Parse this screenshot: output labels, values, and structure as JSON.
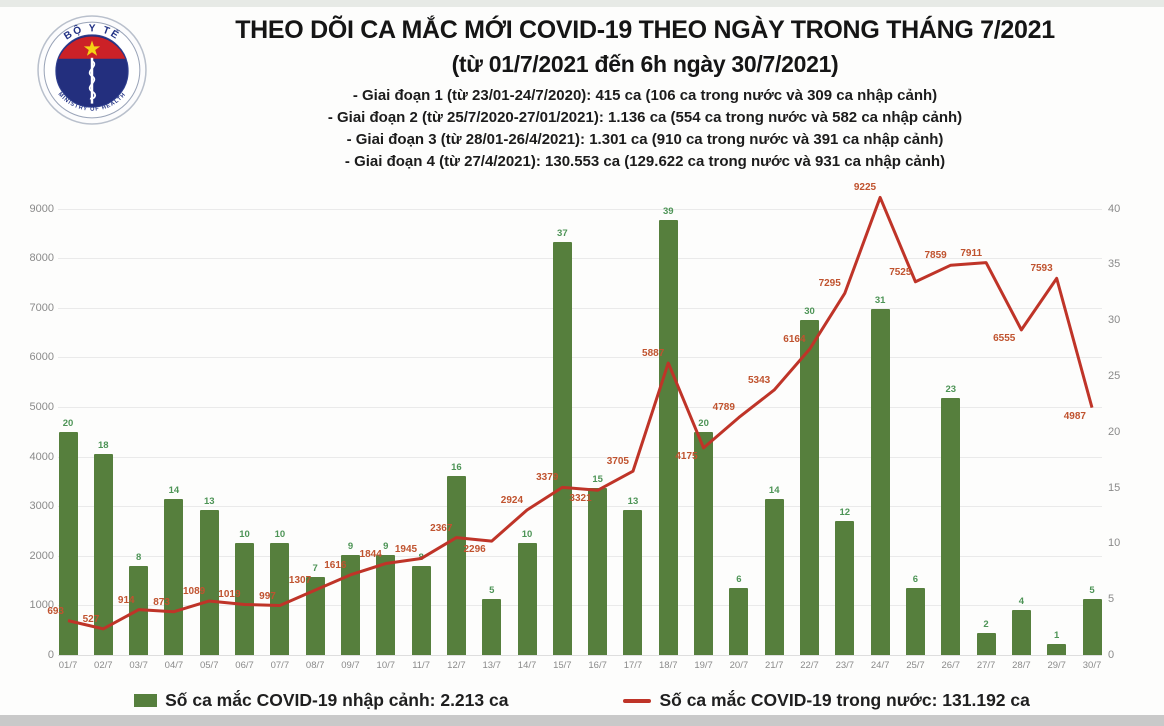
{
  "header": {
    "logo_name": "ministry-of-health-logo",
    "logo_text_top": "BỘ Y TẾ",
    "logo_text_bottom": "MINISTRY OF HEALTH"
  },
  "colors": {
    "bar": "#567f3d",
    "bar_label": "#4d9456",
    "line": "#bf3428",
    "line_label": "#c0532f",
    "grid": "#eaeaea",
    "tick_text": "#8a8a8a",
    "title_text": "#151515",
    "logo_red": "#cc2127",
    "logo_blue": "#232f7e",
    "logo_star": "#f5d313"
  },
  "chart_data": {
    "type": "bar",
    "title": "THEO DÕI CA MẮC MỚI COVID-19 THEO NGÀY TRONG THÁNG 7/2021",
    "subtitle": "(từ 01/7/2021 đến 6h ngày 30/7/2021)",
    "annotations": [
      "- Giai đoạn 1 (từ 23/01-24/7/2020): 415 ca (106 ca trong nước và 309 ca nhập cảnh)",
      "- Giai đoạn 2 (từ 25/7/2020-27/01/2021): 1.136 ca (554 ca trong nước và 582 ca nhập cảnh)",
      "- Giai đoạn 3 (từ 28/01-26/4/2021): 1.301 ca (910 ca trong nước và 391 ca nhập cảnh)",
      "- Giai đoạn 4 (từ 27/4/2021): 130.553 ca (129.622 ca trong nước và 931 ca nhập cảnh)"
    ],
    "categories": [
      "01/7",
      "02/7",
      "03/7",
      "04/7",
      "05/7",
      "06/7",
      "07/7",
      "08/7",
      "09/7",
      "10/7",
      "11/7",
      "12/7",
      "13/7",
      "14/7",
      "15/7",
      "16/7",
      "17/7",
      "18/7",
      "19/7",
      "20/7",
      "21/7",
      "22/7",
      "23/7",
      "24/7",
      "25/7",
      "26/7",
      "27/7",
      "28/7",
      "29/7",
      "30/7"
    ],
    "series": [
      {
        "name": "Số ca mắc COVID-19 nhập cảnh",
        "kind": "bar",
        "axis": "right",
        "values": [
          20,
          18,
          8,
          14,
          13,
          10,
          10,
          7,
          9,
          9,
          8,
          16,
          5,
          10,
          37,
          15,
          13,
          39,
          20,
          6,
          14,
          30,
          12,
          31,
          6,
          23,
          2,
          4,
          1,
          5
        ]
      },
      {
        "name": "Số ca mắc COVID-19 trong nước",
        "kind": "line",
        "axis": "left",
        "values": [
          693,
          527,
          914,
          873,
          1089,
          1019,
          997,
          1307,
          1616,
          1844,
          1945,
          2367,
          2296,
          2924,
          3379,
          3321,
          3705,
          5887,
          4175,
          4789,
          5343,
          6164,
          7295,
          9225,
          7525,
          7859,
          7911,
          6555,
          7593,
          4987
        ]
      }
    ],
    "left_axis": {
      "min": 0,
      "max": 9000,
      "step": 1000
    },
    "right_axis": {
      "min": 0,
      "max": 40,
      "step": 5
    },
    "grid": true,
    "legend_position": "bottom",
    "line_label_below_indices": [
      12,
      15,
      18,
      27,
      29
    ],
    "legend": {
      "bar": "Số ca mắc COVID-19 nhập cảnh: 2.213 ca",
      "line": "Số ca mắc COVID-19 trong nước: 131.192 ca"
    }
  }
}
